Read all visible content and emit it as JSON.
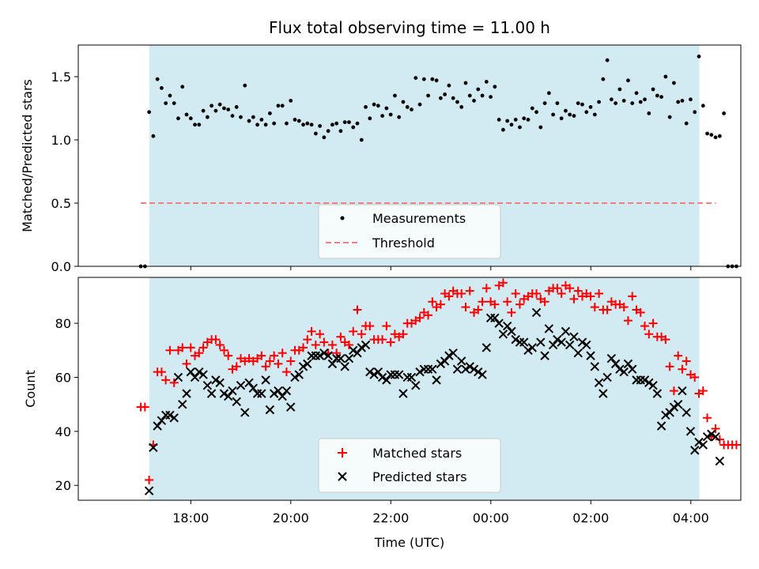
{
  "colors": {
    "shade": "#add8e6",
    "measurement": "#000000",
    "threshold": "#f08080",
    "matched": "#ff0000",
    "predicted": "#000000"
  },
  "chart_data": [
    {
      "type": "scatter",
      "title": "Flux total observing time = 11.00 h",
      "ylabel": "Matched/Predicted stars",
      "xlabel": "",
      "xlim_hours": [
        15.75,
        29.0
      ],
      "ylim": [
        0,
        1.75
      ],
      "yticks": [
        0.0,
        0.5,
        1.0,
        1.5
      ],
      "ytick_labels": [
        "0.0",
        "0.5",
        "1.0",
        "1.5"
      ],
      "shaded_interval_hours": [
        17.17,
        28.17
      ],
      "threshold": {
        "value": 0.5,
        "label": "Threshold",
        "x_range_hours": [
          17.0,
          28.5
        ]
      },
      "legend": {
        "location": "lower center",
        "entries": [
          "Measurements",
          "Threshold"
        ]
      },
      "series": [
        {
          "name": "Measurements",
          "marker": "dot",
          "x_start_hours": 17.0,
          "x_step_hours": 0.0833,
          "values": [
            0,
            0,
            1.22,
            1.03,
            1.48,
            1.41,
            1.29,
            1.35,
            1.29,
            1.17,
            1.42,
            1.2,
            1.17,
            1.12,
            1.12,
            1.23,
            1.18,
            1.27,
            1.23,
            1.28,
            1.25,
            1.24,
            1.19,
            1.26,
            1.18,
            1.43,
            1.15,
            1.18,
            1.12,
            1.16,
            1.12,
            1.21,
            1.13,
            1.27,
            1.27,
            1.13,
            1.31,
            1.16,
            1.15,
            1.12,
            1.13,
            1.12,
            1.05,
            1.11,
            1.02,
            1.07,
            1.12,
            1.13,
            1.07,
            1.14,
            1.14,
            1.1,
            1.13,
            1.0,
            1.26,
            1.17,
            1.28,
            1.27,
            1.19,
            1.25,
            1.2,
            1.35,
            1.18,
            1.3,
            1.26,
            1.24,
            1.49,
            1.28,
            1.48,
            1.35,
            1.48,
            1.47,
            1.33,
            1.36,
            1.43,
            1.33,
            1.3,
            1.26,
            1.45,
            1.35,
            1.31,
            1.4,
            1.35,
            1.46,
            1.34,
            1.42,
            1.16,
            1.08,
            1.15,
            1.12,
            1.16,
            1.1,
            1.17,
            1.16,
            1.25,
            1.22,
            1.1,
            1.29,
            1.37,
            1.2,
            1.29,
            1.17,
            1.23,
            1.2,
            1.19,
            1.29,
            1.28,
            1.22,
            1.26,
            1.2,
            1.3,
            1.48,
            1.63,
            1.32,
            1.29,
            1.4,
            1.31,
            1.47,
            1.29,
            1.37,
            1.3,
            1.32,
            1.21,
            1.4,
            1.35,
            1.34,
            1.5,
            1.18,
            1.45,
            1.3,
            1.31,
            1.13,
            1.32,
            1.22,
            1.66,
            1.27,
            1.05,
            1.04,
            1.02,
            1.03,
            1.21,
            0,
            0,
            0
          ]
        }
      ]
    },
    {
      "type": "scatter",
      "title": "",
      "xlabel": "Time (UTC)",
      "ylabel": "Count",
      "xlim_hours": [
        15.75,
        29.0
      ],
      "ylim": [
        14.5,
        97
      ],
      "yticks": [
        20,
        40,
        60,
        80
      ],
      "ytick_labels": [
        "20",
        "40",
        "60",
        "80"
      ],
      "xticks_hours": [
        18,
        20,
        22,
        24,
        26,
        28
      ],
      "xtick_labels": [
        "18:00",
        "20:00",
        "22:00",
        "00:00",
        "02:00",
        "04:00"
      ],
      "shaded_interval_hours": [
        17.17,
        28.17
      ],
      "legend": {
        "location": "lower center",
        "entries": [
          "Matched stars",
          "Predicted stars"
        ]
      },
      "series": [
        {
          "name": "Matched stars",
          "marker": "plus",
          "x_start_hours": 17.0,
          "x_step_hours": 0.0833,
          "values": [
            49,
            49,
            22,
            35,
            62,
            62,
            59,
            70,
            58,
            70,
            71,
            65,
            71,
            68,
            69,
            71,
            73,
            74,
            74,
            72,
            70,
            68,
            63,
            64,
            67,
            66,
            67,
            66,
            67,
            68,
            64,
            66,
            68,
            65,
            69,
            62,
            66,
            70,
            70,
            71,
            74,
            77,
            72,
            76,
            73,
            69,
            72,
            69,
            75,
            73,
            72,
            77,
            85,
            76,
            79,
            79,
            74,
            74,
            74,
            79,
            73,
            76,
            75,
            76,
            80,
            80,
            81,
            82,
            84,
            83,
            88,
            86,
            87,
            91,
            90,
            92,
            91,
            91,
            86,
            92,
            84,
            85,
            88,
            93,
            88,
            87,
            94,
            95,
            88,
            84,
            91,
            87,
            89,
            90,
            91,
            91,
            89,
            88,
            92,
            93,
            93,
            91,
            94,
            93,
            89,
            92,
            90,
            91,
            90,
            86,
            91,
            85,
            85,
            88,
            87,
            87,
            86,
            81,
            90,
            85,
            84,
            79,
            76,
            80,
            75,
            75,
            74,
            64,
            55,
            68,
            63,
            66,
            61,
            60,
            54,
            55,
            45,
            38,
            41,
            37,
            35,
            35,
            35,
            35
          ]
        },
        {
          "name": "Predicted stars",
          "marker": "x",
          "x_start_hours": 17.0,
          "x_step_hours": 0.0833,
          "values": [
            null,
            null,
            18,
            34,
            42,
            44,
            46,
            46,
            45,
            60,
            50,
            54,
            62,
            60,
            62,
            61,
            57,
            54,
            59,
            58,
            54,
            53,
            55,
            51,
            57,
            47,
            58,
            56,
            54,
            54,
            59,
            48,
            54,
            55,
            53,
            55,
            49,
            60,
            61,
            64,
            65,
            68,
            68,
            68,
            69,
            68,
            65,
            67,
            67,
            64,
            67,
            70,
            69,
            71,
            72,
            62,
            61,
            62,
            60,
            59,
            61,
            61,
            61,
            54,
            60,
            60,
            57,
            62,
            63,
            63,
            63,
            59,
            65,
            66,
            68,
            69,
            63,
            66,
            63,
            64,
            63,
            62,
            61,
            71,
            82,
            82,
            80,
            76,
            79,
            77,
            74,
            73,
            73,
            70,
            71,
            84,
            73,
            68,
            78,
            72,
            74,
            73,
            77,
            72,
            75,
            69,
            73,
            72,
            68,
            64,
            58,
            54,
            60,
            67,
            65,
            63,
            62,
            65,
            63,
            59,
            59,
            59,
            58,
            57,
            54,
            42,
            46,
            47,
            49,
            50,
            55,
            47,
            40,
            33,
            36,
            35,
            38,
            39,
            38,
            29
          ]
        }
      ]
    }
  ]
}
